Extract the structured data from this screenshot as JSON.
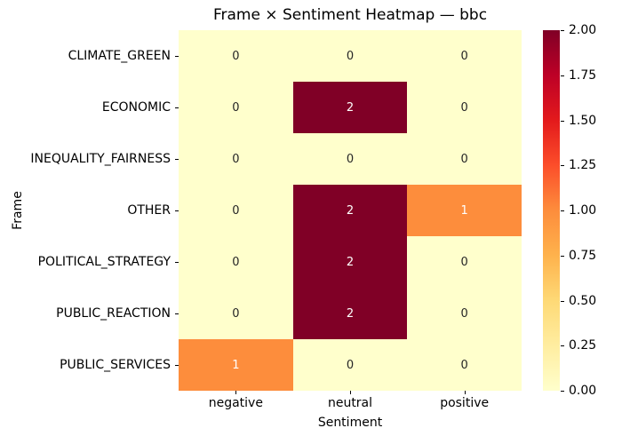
{
  "chart_data": {
    "type": "heatmap",
    "title": "Frame × Sentiment Heatmap — bbc",
    "xlabel": "Sentiment",
    "ylabel": "Frame",
    "columns": [
      "negative",
      "neutral",
      "positive"
    ],
    "rows": [
      "CLIMATE_GREEN",
      "ECONOMIC",
      "INEQUALITY_FAIRNESS",
      "OTHER",
      "POLITICAL_STRATEGY",
      "PUBLIC_REACTION",
      "PUBLIC_SERVICES"
    ],
    "values": [
      [
        0,
        0,
        0
      ],
      [
        0,
        2,
        0
      ],
      [
        0,
        0,
        0
      ],
      [
        0,
        2,
        1
      ],
      [
        0,
        2,
        0
      ],
      [
        0,
        2,
        0
      ],
      [
        1,
        0,
        0
      ]
    ],
    "vmin": 0,
    "vmax": 2,
    "colormap": "YlOrRd",
    "colormap_stops": [
      "#ffffcc",
      "#ffeda0",
      "#fed976",
      "#feb24c",
      "#fd8d3c",
      "#fc4e2a",
      "#e31a1c",
      "#bd0026",
      "#800026"
    ],
    "value_colors": {
      "0": "#ffffcc",
      "1": "#fd8d3c",
      "2": "#800026"
    },
    "annotation_text_colors": {
      "0": "#262626",
      "1": "#ffffff",
      "2": "#ffffff"
    },
    "colorbar_ticks": [
      "2.00",
      "1.75",
      "1.50",
      "1.25",
      "1.00",
      "0.75",
      "0.50",
      "0.25",
      "0.00"
    ],
    "legend_position": "right",
    "grid": false
  }
}
